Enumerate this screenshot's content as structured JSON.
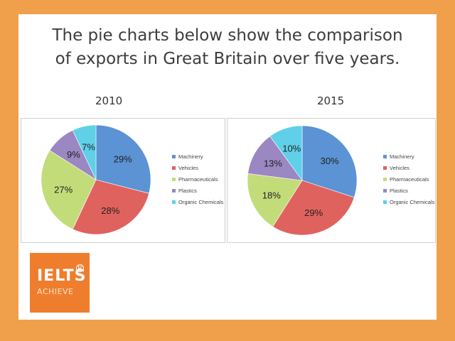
{
  "headline": {
    "line1": "The pie charts below show the comparison",
    "line2": "of exports in Great Britain over five years."
  },
  "logo": {
    "word1": "IELTS",
    "word2": "ACHIEVE",
    "mark": "R"
  },
  "chart_data": [
    {
      "type": "pie",
      "title": "2010",
      "legend_position": "right",
      "labels": [
        "Machinery",
        "Vehicles",
        "Pharmaceuticals",
        "Plastics",
        "Organic Chemicals"
      ],
      "values": [
        29,
        28,
        27,
        9,
        7
      ],
      "value_labels": [
        "29%",
        "28%",
        "27%",
        "9%",
        "7%"
      ],
      "colors": [
        "#5b93d4",
        "#e0625f",
        "#c3dc7a",
        "#9b87c2",
        "#5fd0e8"
      ]
    },
    {
      "type": "pie",
      "title": "2015",
      "legend_position": "right",
      "labels": [
        "Machinery",
        "Vehicles",
        "Pharmaceuticals",
        "Plastics",
        "Organic Chemicals"
      ],
      "values": [
        30,
        29,
        18,
        13,
        10
      ],
      "value_labels": [
        "30%",
        "29%",
        "18%",
        "13%",
        "10%"
      ],
      "colors": [
        "#5b93d4",
        "#e0625f",
        "#c3dc7a",
        "#9b87c2",
        "#5fd0e8"
      ]
    }
  ]
}
